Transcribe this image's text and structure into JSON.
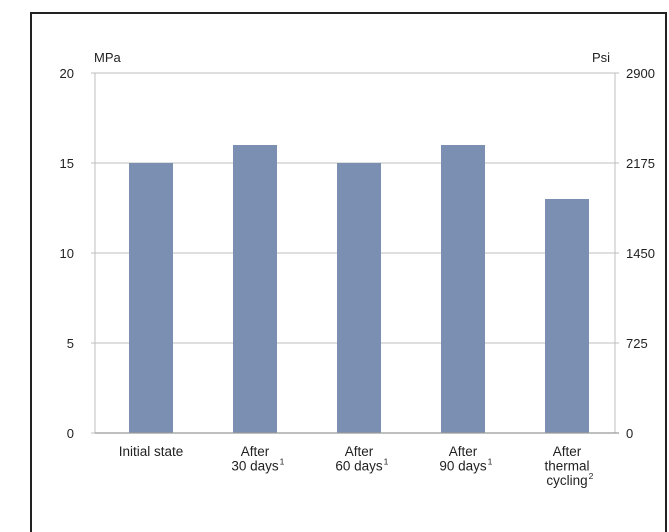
{
  "chart_data": {
    "type": "bar",
    "left_axis": {
      "unit": "MPa",
      "ylim": [
        0,
        20
      ],
      "ticks": [
        "0",
        "5",
        "10",
        "15",
        "20"
      ]
    },
    "right_axis": {
      "unit": "Psi",
      "ylim": [
        0,
        2900
      ],
      "ticks": [
        "0",
        "725",
        "1450",
        "2175",
        "2900"
      ]
    },
    "categories": [
      {
        "lines": [
          "Initial state"
        ],
        "sup": ""
      },
      {
        "lines": [
          "After",
          "30 days"
        ],
        "sup": "1"
      },
      {
        "lines": [
          "After",
          "60 days"
        ],
        "sup": "1"
      },
      {
        "lines": [
          "After",
          "90 days"
        ],
        "sup": "1"
      },
      {
        "lines": [
          "After",
          "thermal",
          "cycling"
        ],
        "sup": "2"
      }
    ],
    "values": [
      15,
      16,
      15,
      16,
      13
    ],
    "bar_color": "#7b8fb3",
    "grid": true,
    "grid_color": "#bfbfbf"
  }
}
